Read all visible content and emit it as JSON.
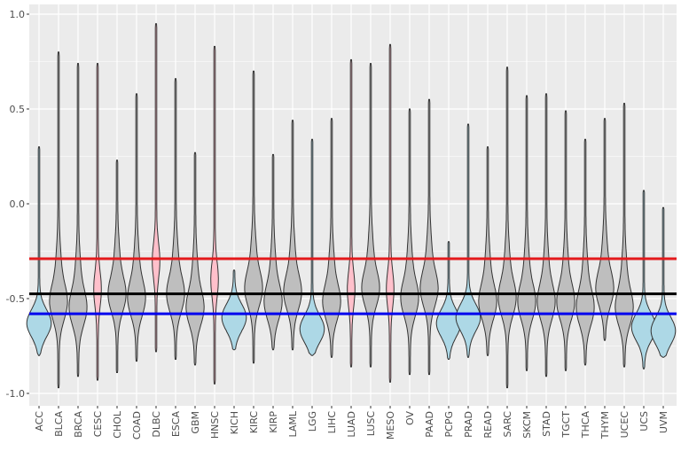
{
  "chart_data": {
    "type": "violin",
    "title": "",
    "xlabel": "",
    "ylabel": "",
    "ylim": [
      -1.05,
      1.05
    ],
    "yticks": [
      {
        "v": 1.0,
        "label": "1.0"
      },
      {
        "v": 0.5,
        "label": "0.5"
      },
      {
        "v": 0.0,
        "label": "0.0"
      },
      {
        "v": -0.5,
        "label": "-0.5"
      },
      {
        "v": -1.0,
        "label": "-1.0"
      }
    ],
    "grid": true,
    "colors": {
      "gray": "#bebebe",
      "blue": "#add8e6",
      "pink": "#ffc0cb",
      "panel": "#ebebeb"
    },
    "reference_lines": [
      {
        "value": -0.29,
        "color": "#e41a1c"
      },
      {
        "value": -0.475,
        "color": "#000000"
      },
      {
        "value": -0.58,
        "color": "#0000ee"
      }
    ],
    "categories": [
      "ACC",
      "BLCA",
      "BRCA",
      "CESC",
      "CHOL",
      "COAD",
      "DLBC",
      "ESCA",
      "GBM",
      "HNSC",
      "KICH",
      "KIRC",
      "KIRP",
      "LAML",
      "LGG",
      "LIHC",
      "LUAD",
      "LUSC",
      "MESO",
      "OV",
      "PAAD",
      "PCPG",
      "PRAD",
      "READ",
      "SARC",
      "SKCM",
      "STAD",
      "TGCT",
      "THCA",
      "THYM",
      "UCEC",
      "UCS",
      "UVM"
    ],
    "violins": [
      {
        "max": 0.3,
        "min": -0.8,
        "mode": -0.63,
        "fill": "blue"
      },
      {
        "max": 0.8,
        "min": -0.97,
        "mode": -0.52,
        "fill": "gray"
      },
      {
        "max": 0.74,
        "min": -0.91,
        "mode": -0.55,
        "fill": "gray"
      },
      {
        "max": 0.74,
        "min": -0.93,
        "mode": -0.45,
        "fill": "pink"
      },
      {
        "max": 0.23,
        "min": -0.89,
        "mode": -0.48,
        "fill": "gray"
      },
      {
        "max": 0.58,
        "min": -0.83,
        "mode": -0.5,
        "fill": "gray"
      },
      {
        "max": 0.95,
        "min": -0.78,
        "mode": -0.3,
        "fill": "pink"
      },
      {
        "max": 0.66,
        "min": -0.82,
        "mode": -0.48,
        "fill": "gray"
      },
      {
        "max": 0.27,
        "min": -0.85,
        "mode": -0.55,
        "fill": "gray"
      },
      {
        "max": 0.83,
        "min": -0.95,
        "mode": -0.4,
        "fill": "pink"
      },
      {
        "max": -0.35,
        "min": -0.77,
        "mode": -0.6,
        "fill": "blue"
      },
      {
        "max": 0.7,
        "min": -0.84,
        "mode": -0.45,
        "fill": "gray"
      },
      {
        "max": 0.26,
        "min": -0.77,
        "mode": -0.52,
        "fill": "gray"
      },
      {
        "max": 0.44,
        "min": -0.77,
        "mode": -0.47,
        "fill": "gray"
      },
      {
        "max": 0.34,
        "min": -0.8,
        "mode": -0.66,
        "fill": "blue"
      },
      {
        "max": 0.45,
        "min": -0.81,
        "mode": -0.52,
        "fill": "gray"
      },
      {
        "max": 0.76,
        "min": -0.86,
        "mode": -0.45,
        "fill": "pink"
      },
      {
        "max": 0.74,
        "min": -0.86,
        "mode": -0.45,
        "fill": "gray"
      },
      {
        "max": 0.84,
        "min": -0.94,
        "mode": -0.45,
        "fill": "pink"
      },
      {
        "max": 0.5,
        "min": -0.9,
        "mode": -0.5,
        "fill": "gray"
      },
      {
        "max": 0.55,
        "min": -0.9,
        "mode": -0.45,
        "fill": "gray"
      },
      {
        "max": -0.2,
        "min": -0.82,
        "mode": -0.63,
        "fill": "blue"
      },
      {
        "max": 0.42,
        "min": -0.81,
        "mode": -0.6,
        "fill": "blue"
      },
      {
        "max": 0.3,
        "min": -0.8,
        "mode": -0.52,
        "fill": "gray"
      },
      {
        "max": 0.72,
        "min": -0.97,
        "mode": -0.5,
        "fill": "gray"
      },
      {
        "max": 0.57,
        "min": -0.88,
        "mode": -0.52,
        "fill": "gray"
      },
      {
        "max": 0.58,
        "min": -0.91,
        "mode": -0.52,
        "fill": "gray"
      },
      {
        "max": 0.49,
        "min": -0.88,
        "mode": -0.52,
        "fill": "gray"
      },
      {
        "max": 0.34,
        "min": -0.85,
        "mode": -0.55,
        "fill": "gray"
      },
      {
        "max": 0.45,
        "min": -0.72,
        "mode": -0.45,
        "fill": "gray"
      },
      {
        "max": 0.53,
        "min": -0.86,
        "mode": -0.55,
        "fill": "gray"
      },
      {
        "max": 0.07,
        "min": -0.87,
        "mode": -0.65,
        "fill": "blue"
      },
      {
        "max": -0.02,
        "min": -0.81,
        "mode": -0.67,
        "fill": "blue"
      }
    ]
  }
}
